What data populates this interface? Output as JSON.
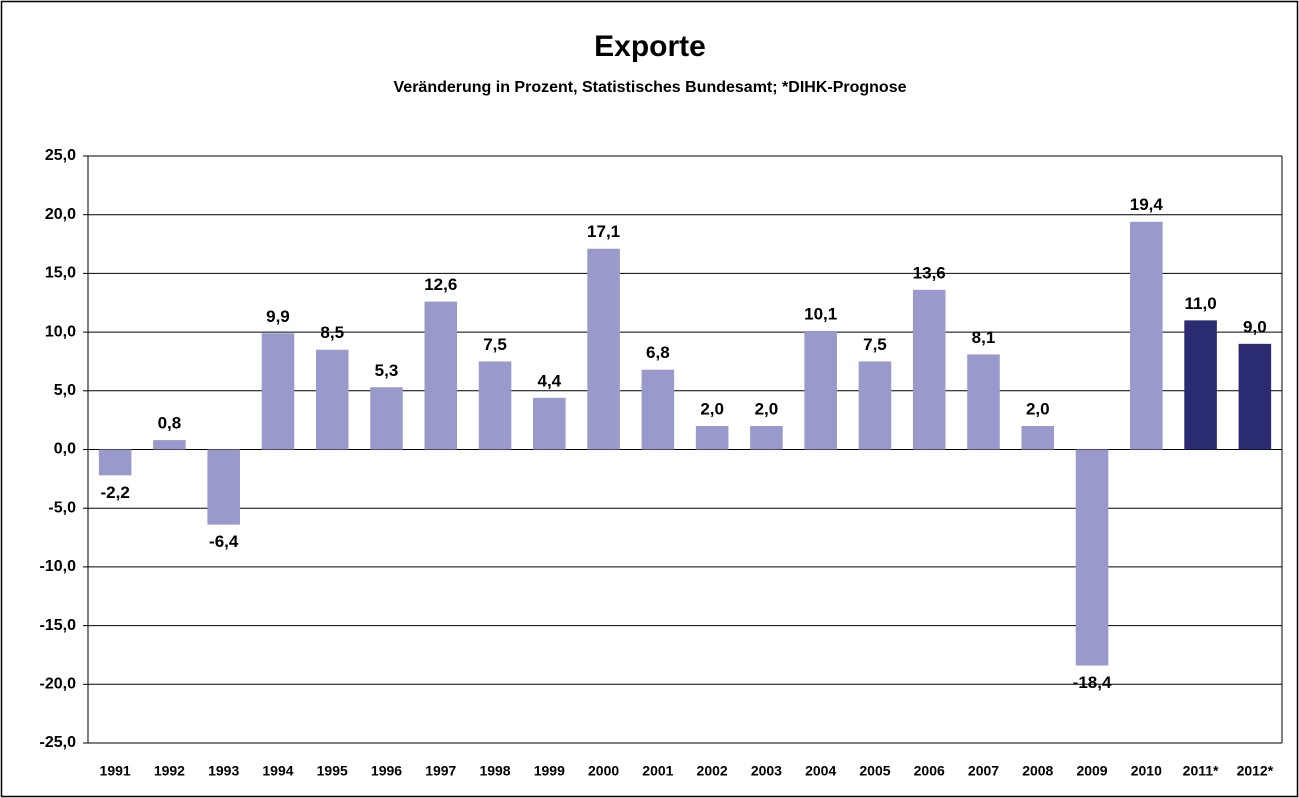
{
  "chart_data": {
    "type": "bar",
    "title": "Exporte",
    "subtitle": "Veränderung in Prozent, Statistisches Bundesamt; *DIHK-Prognose",
    "categories": [
      "1991",
      "1992",
      "1993",
      "1994",
      "1995",
      "1996",
      "1997",
      "1998",
      "1999",
      "2000",
      "2001",
      "2002",
      "2003",
      "2004",
      "2005",
      "2006",
      "2007",
      "2008",
      "2009",
      "2010",
      "2011*",
      "2012*"
    ],
    "values": [
      -2.2,
      0.8,
      -6.4,
      9.9,
      8.5,
      5.3,
      12.6,
      7.5,
      4.4,
      17.1,
      6.8,
      2.0,
      2.0,
      10.1,
      7.5,
      13.6,
      8.1,
      2.0,
      -18.4,
      19.4,
      11.0,
      9.0
    ],
    "value_labels": [
      "-2,2",
      "0,8",
      "-6,4",
      "9,9",
      "8,5",
      "5,3",
      "12,6",
      "7,5",
      "4,4",
      "17,1",
      "6,8",
      "2,0",
      "2,0",
      "10,1",
      "7,5",
      "13,6",
      "8,1",
      "2,0",
      "-18,4",
      "19,4",
      "11,0",
      "9,0"
    ],
    "colors": [
      "#9999cc",
      "#9999cc",
      "#9999cc",
      "#9999cc",
      "#9999cc",
      "#9999cc",
      "#9999cc",
      "#9999cc",
      "#9999cc",
      "#9999cc",
      "#9999cc",
      "#9999cc",
      "#9999cc",
      "#9999cc",
      "#9999cc",
      "#9999cc",
      "#9999cc",
      "#9999cc",
      "#9999cc",
      "#9999cc",
      "#2b2b72",
      "#2b2b72"
    ],
    "ylim": [
      -25,
      25
    ],
    "yticks": [
      {
        "value": -25,
        "label": "-25,0"
      },
      {
        "value": -20,
        "label": "-20,0"
      },
      {
        "value": -15,
        "label": "-15,0"
      },
      {
        "value": -10,
        "label": "-10,0"
      },
      {
        "value": -5,
        "label": "-5,0"
      },
      {
        "value": 0,
        "label": "0,0"
      },
      {
        "value": 5,
        "label": "5,0"
      },
      {
        "value": 10,
        "label": "10,0"
      },
      {
        "value": 15,
        "label": "15,0"
      },
      {
        "value": 20,
        "label": "20,0"
      },
      {
        "value": 25,
        "label": "25,0"
      }
    ],
    "grid": true
  }
}
